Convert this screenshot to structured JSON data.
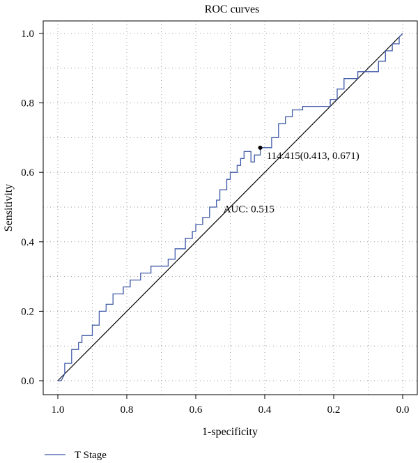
{
  "chart_data": {
    "type": "line",
    "title": "ROC curves",
    "xlabel": "1-specificity",
    "ylabel": "Sensitivity",
    "x_reversed": true,
    "xlim": [
      1.0,
      0.0
    ],
    "ylim": [
      0.0,
      1.0
    ],
    "x_ticks": [
      "1.0",
      "0.8",
      "0.6",
      "0.4",
      "0.2",
      "0.0"
    ],
    "y_ticks": [
      "0.0",
      "0.2",
      "0.4",
      "0.6",
      "0.8",
      "1.0"
    ],
    "grid": true,
    "legend_position": "bottom-left",
    "series": [
      {
        "name": "T Stage",
        "color": "#3f5aa8",
        "x": [
          1.0,
          0.99,
          0.98,
          0.98,
          0.96,
          0.96,
          0.94,
          0.94,
          0.93,
          0.93,
          0.9,
          0.9,
          0.88,
          0.88,
          0.86,
          0.86,
          0.84,
          0.84,
          0.81,
          0.81,
          0.79,
          0.79,
          0.76,
          0.76,
          0.73,
          0.73,
          0.68,
          0.68,
          0.66,
          0.66,
          0.63,
          0.63,
          0.61,
          0.61,
          0.6,
          0.6,
          0.58,
          0.58,
          0.56,
          0.56,
          0.54,
          0.54,
          0.53,
          0.53,
          0.51,
          0.51,
          0.5,
          0.5,
          0.48,
          0.48,
          0.47,
          0.47,
          0.46,
          0.46,
          0.44,
          0.44,
          0.43,
          0.43,
          0.413,
          0.413,
          0.38,
          0.38,
          0.36,
          0.36,
          0.34,
          0.34,
          0.32,
          0.32,
          0.29,
          0.29,
          0.21,
          0.21,
          0.19,
          0.19,
          0.17,
          0.17,
          0.13,
          0.13,
          0.07,
          0.07,
          0.05,
          0.05,
          0.03,
          0.03,
          0.01,
          0.01,
          0.0
        ],
        "y": [
          0.0,
          0.0,
          0.02,
          0.05,
          0.05,
          0.09,
          0.09,
          0.11,
          0.11,
          0.13,
          0.13,
          0.16,
          0.16,
          0.2,
          0.2,
          0.22,
          0.22,
          0.25,
          0.25,
          0.27,
          0.27,
          0.29,
          0.29,
          0.31,
          0.31,
          0.33,
          0.33,
          0.35,
          0.35,
          0.38,
          0.38,
          0.41,
          0.41,
          0.43,
          0.43,
          0.45,
          0.45,
          0.47,
          0.47,
          0.5,
          0.5,
          0.52,
          0.52,
          0.55,
          0.55,
          0.58,
          0.58,
          0.6,
          0.6,
          0.62,
          0.62,
          0.64,
          0.64,
          0.66,
          0.66,
          0.63,
          0.63,
          0.65,
          0.65,
          0.671,
          0.671,
          0.7,
          0.7,
          0.74,
          0.74,
          0.76,
          0.76,
          0.78,
          0.78,
          0.79,
          0.79,
          0.81,
          0.81,
          0.84,
          0.84,
          0.87,
          0.87,
          0.89,
          0.89,
          0.92,
          0.92,
          0.95,
          0.95,
          0.97,
          0.97,
          0.99,
          1.0
        ]
      }
    ],
    "diagonal": {
      "from": [
        1.0,
        0.0
      ],
      "to": [
        0.0,
        1.0
      ],
      "color": "#000000"
    },
    "cutoff_point": {
      "x": 0.413,
      "y": 0.671,
      "label": "114.415(0.413, 0.671)"
    },
    "auc_label": {
      "text": "AUC: 0.515",
      "color": "#3f5aa8",
      "x": 0.52,
      "y": 0.485
    }
  }
}
